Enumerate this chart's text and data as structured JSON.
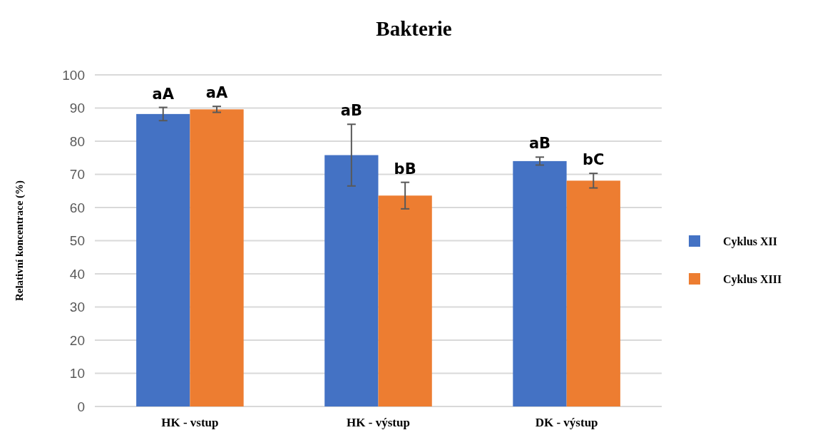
{
  "chart_data": {
    "type": "bar",
    "title": "Bakterie",
    "ylabel": "Relativní koncentrace (%)",
    "categories": [
      "HK - vstup",
      "HK - výstup",
      "DK - výstup"
    ],
    "series": [
      {
        "name": "Cyklus XII",
        "color": "#4472c4",
        "values": [
          88.2,
          75.8,
          74.0
        ],
        "errors": [
          2.0,
          9.3,
          1.2
        ],
        "value_labels": [
          "aA",
          "aB",
          "aB"
        ]
      },
      {
        "name": "Cyklus XIII",
        "color": "#ed7d31",
        "values": [
          89.6,
          63.6,
          68.1
        ],
        "errors": [
          0.9,
          4.0,
          2.2
        ],
        "value_labels": [
          "aA",
          "bB",
          "bC"
        ]
      }
    ],
    "ylim": [
      0,
      100
    ],
    "yticks": [
      0,
      10,
      20,
      30,
      40,
      50,
      60,
      70,
      80,
      90,
      100
    ],
    "grid": "y",
    "legend": "right"
  }
}
